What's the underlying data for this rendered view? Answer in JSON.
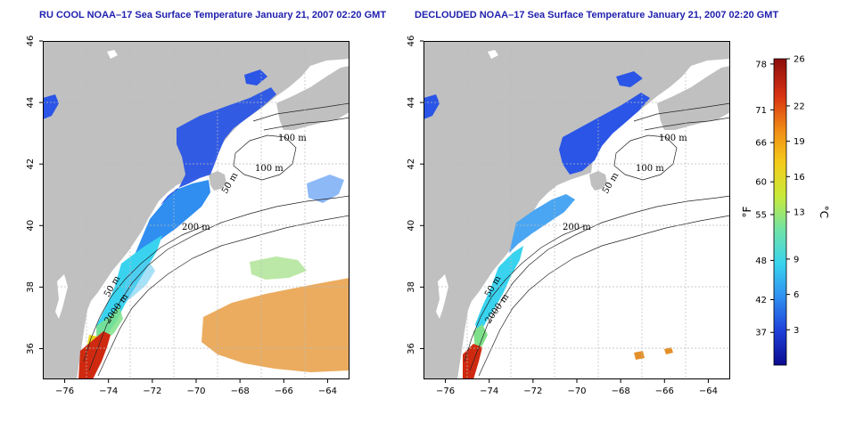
{
  "titles": {
    "left": "RU COOL NOAA–17 Sea Surface Temperature January 21, 2007 02:20 GMT",
    "right": "DECLOUDED NOAA–17 Sea Surface Temperature January 21, 2007 02:20 GMT"
  },
  "axes": {
    "x_ticks": [
      -76,
      -74,
      -72,
      -70,
      -68,
      -66,
      -64
    ],
    "y_ticks": [
      36,
      38,
      40,
      42,
      44,
      46
    ],
    "x_range": [
      -77.0,
      -63.0
    ],
    "y_range": [
      35.0,
      46.0
    ],
    "grid": "dotted"
  },
  "isobath_labels": [
    "100 m",
    "100 m",
    "50 m",
    "200 m",
    "50 m",
    "2000 m"
  ],
  "colorbar": {
    "celsius_ticks": [
      26,
      22,
      19,
      16,
      13,
      9,
      6,
      3
    ],
    "fahrenheit_ticks": [
      78,
      71,
      66,
      60,
      55,
      48,
      42,
      37
    ],
    "celsius_unit": "°C",
    "fahrenheit_unit": "°F",
    "range_c": [
      0,
      26
    ],
    "colors": [
      "#0b0b8f",
      "#1d3fd8",
      "#2f8ef0",
      "#39d3ef",
      "#6fe3a8",
      "#c7ea3a",
      "#f4cc1a",
      "#f08a15",
      "#d83212",
      "#8b0d0d"
    ]
  },
  "colors": {
    "land": "#c0c0c0",
    "title": "#1f1fae"
  }
}
